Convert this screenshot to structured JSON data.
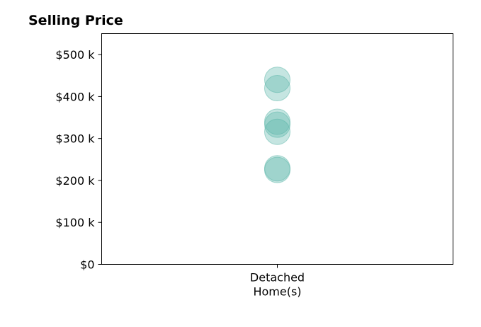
{
  "chart_data": {
    "type": "scatter",
    "title": "Selling Price",
    "xlabel": "",
    "ylabel": "",
    "categories": [
      "Detached\nHome(s)"
    ],
    "ylim": [
      0,
      550000
    ],
    "yticks": [
      {
        "value": 0,
        "label": "$0"
      },
      {
        "value": 100000,
        "label": "$100 k"
      },
      {
        "value": 200000,
        "label": "$200 k"
      },
      {
        "value": 300000,
        "label": "$300 k"
      },
      {
        "value": 400000,
        "label": "$400 k"
      },
      {
        "value": 500000,
        "label": "$500 k"
      }
    ],
    "series": [
      {
        "category": "Detached\nHome(s)",
        "values": [
          440000,
          420000,
          340000,
          333000,
          316000,
          229000,
          225000
        ]
      }
    ],
    "marker_color": "#5ab5a8",
    "marker_opacity": 0.35,
    "grid": false,
    "legend": "none"
  }
}
